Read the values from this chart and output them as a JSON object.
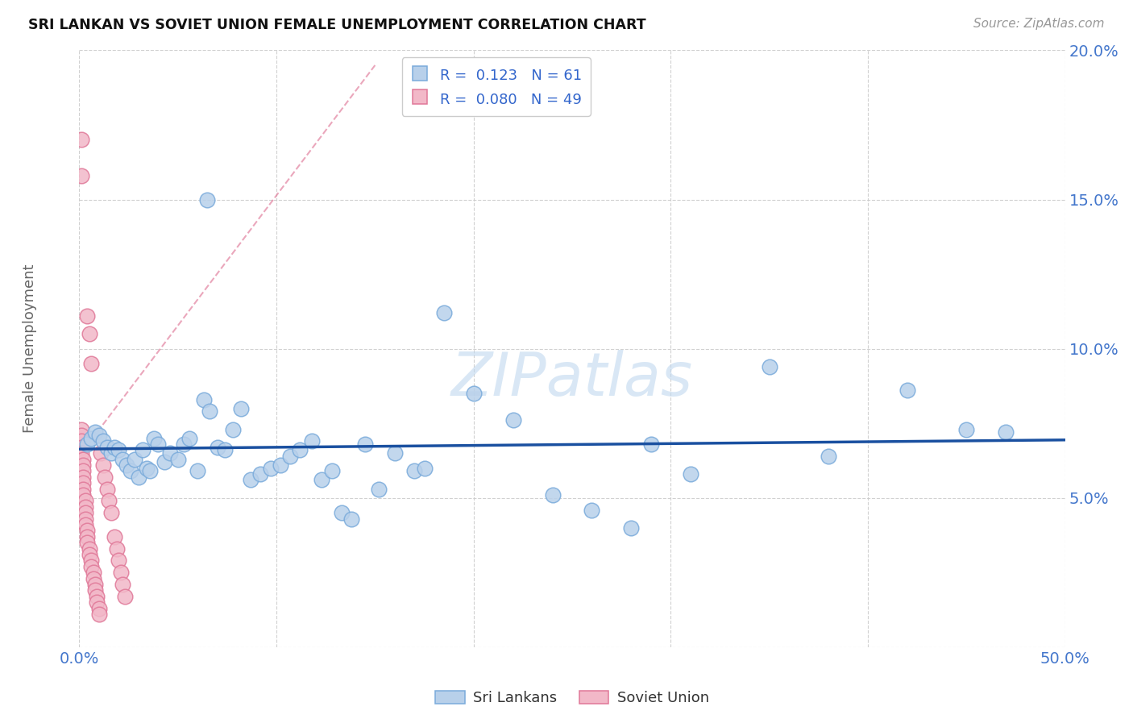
{
  "title": "SRI LANKAN VS SOVIET UNION FEMALE UNEMPLOYMENT CORRELATION CHART",
  "source": "Source: ZipAtlas.com",
  "ylabel": "Female Unemployment",
  "xlim": [
    0.0,
    0.5
  ],
  "ylim": [
    0.0,
    0.2
  ],
  "sri_lanka_face": "#b8d0ea",
  "sri_lanka_edge": "#7aabdb",
  "soviet_face": "#f2b8c8",
  "soviet_edge": "#e07898",
  "regression_line_color": "#1a50a0",
  "diagonal_color": "#e07898",
  "legend_entry1": "R =  0.123   N = 61",
  "legend_entry2": "R =  0.080   N = 49",
  "legend_label1": "Sri Lankans",
  "legend_label2": "Soviet Union",
  "watermark": "ZIPatlas",
  "sri_lankans_x": [
    0.004,
    0.006,
    0.008,
    0.01,
    0.012,
    0.014,
    0.016,
    0.018,
    0.02,
    0.022,
    0.024,
    0.026,
    0.028,
    0.03,
    0.032,
    0.034,
    0.036,
    0.038,
    0.04,
    0.043,
    0.046,
    0.05,
    0.053,
    0.056,
    0.06,
    0.063,
    0.066,
    0.07,
    0.074,
    0.078,
    0.082,
    0.087,
    0.092,
    0.097,
    0.102,
    0.107,
    0.112,
    0.118,
    0.123,
    0.128,
    0.133,
    0.145,
    0.16,
    0.17,
    0.185,
    0.2,
    0.22,
    0.24,
    0.26,
    0.29,
    0.31,
    0.35,
    0.38,
    0.42,
    0.45,
    0.47,
    0.065,
    0.138,
    0.152,
    0.175,
    0.28
  ],
  "sri_lankans_y": [
    0.068,
    0.07,
    0.072,
    0.071,
    0.069,
    0.067,
    0.065,
    0.067,
    0.066,
    0.063,
    0.061,
    0.059,
    0.063,
    0.057,
    0.066,
    0.06,
    0.059,
    0.07,
    0.068,
    0.062,
    0.065,
    0.063,
    0.068,
    0.07,
    0.059,
    0.083,
    0.079,
    0.067,
    0.066,
    0.073,
    0.08,
    0.056,
    0.058,
    0.06,
    0.061,
    0.064,
    0.066,
    0.069,
    0.056,
    0.059,
    0.045,
    0.068,
    0.065,
    0.059,
    0.112,
    0.085,
    0.076,
    0.051,
    0.046,
    0.068,
    0.058,
    0.094,
    0.064,
    0.086,
    0.073,
    0.072,
    0.15,
    0.043,
    0.053,
    0.06,
    0.04
  ],
  "soviet_x": [
    0.001,
    0.001,
    0.001,
    0.001,
    0.001,
    0.001,
    0.001,
    0.002,
    0.002,
    0.002,
    0.002,
    0.002,
    0.002,
    0.002,
    0.003,
    0.003,
    0.003,
    0.003,
    0.003,
    0.004,
    0.004,
    0.004,
    0.004,
    0.005,
    0.005,
    0.005,
    0.006,
    0.006,
    0.006,
    0.007,
    0.007,
    0.008,
    0.008,
    0.009,
    0.009,
    0.01,
    0.01,
    0.011,
    0.012,
    0.013,
    0.014,
    0.015,
    0.016,
    0.018,
    0.019,
    0.02,
    0.021,
    0.022,
    0.023
  ],
  "soviet_y": [
    0.17,
    0.158,
    0.073,
    0.071,
    0.069,
    0.067,
    0.065,
    0.063,
    0.061,
    0.059,
    0.057,
    0.055,
    0.053,
    0.051,
    0.049,
    0.047,
    0.045,
    0.043,
    0.041,
    0.039,
    0.037,
    0.035,
    0.111,
    0.033,
    0.031,
    0.105,
    0.029,
    0.027,
    0.095,
    0.025,
    0.023,
    0.021,
    0.019,
    0.017,
    0.015,
    0.013,
    0.011,
    0.065,
    0.061,
    0.057,
    0.053,
    0.049,
    0.045,
    0.037,
    0.033,
    0.029,
    0.025,
    0.021,
    0.017
  ]
}
